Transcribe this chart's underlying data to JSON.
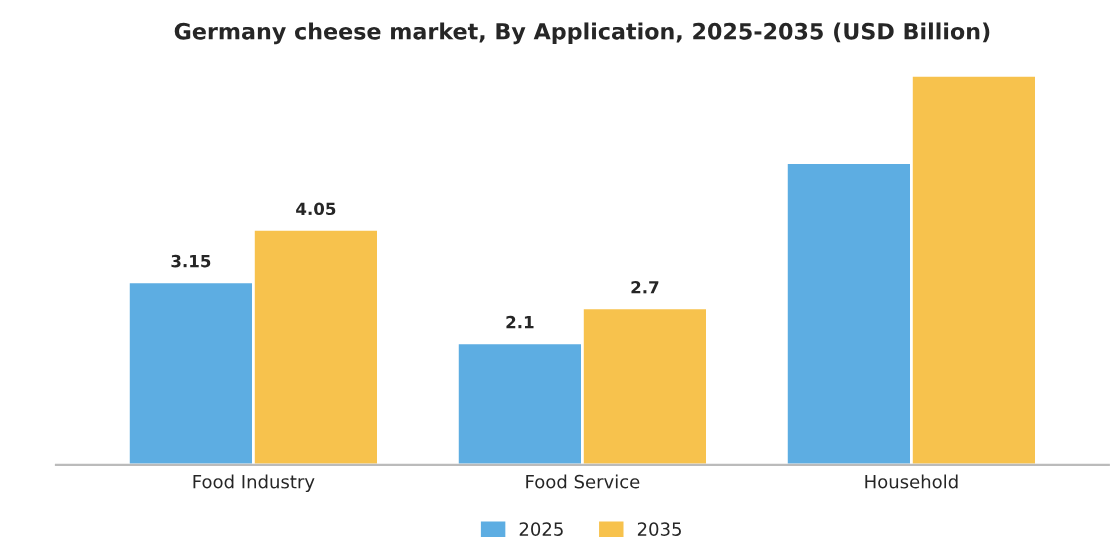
{
  "chart_data": {
    "type": "bar",
    "title": "Germany cheese market, By Application, 2025-2035 (USD Billion)",
    "categories": [
      "Food Industry",
      "Food Service",
      "Household"
    ],
    "series": [
      {
        "name": "2025",
        "color": "#5dade2",
        "values": [
          3.15,
          2.1,
          5.2
        ],
        "value_labels": [
          "3.15",
          "2.1",
          null
        ]
      },
      {
        "name": "2035",
        "color": "#f7c24d",
        "values": [
          4.05,
          2.7,
          6.7
        ],
        "value_labels": [
          "4.05",
          "2.7",
          null
        ]
      }
    ],
    "tick_labels": "x",
    "grid": false,
    "legend": "bottom"
  }
}
